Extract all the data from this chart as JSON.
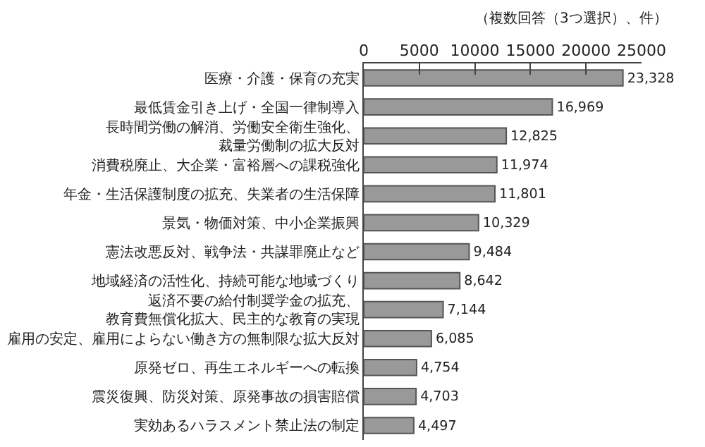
{
  "chart_data": {
    "type": "bar",
    "orientation": "horizontal",
    "categories": [
      "医療・介護・保育の充実",
      "最低賃金引き上げ・全国一律制導入",
      "長時間労働の解消、労働安全衛生強化、裁量労働制の拡大反対",
      "消費税廃止、大企業・富裕層への課税強化",
      "年金・生活保護制度の拡充、失業者の生活保障",
      "景気・物価対策、中小企業振興",
      "憲法改悪反対、戦争法・共謀罪廃止など",
      "地域経済の活性化、持続可能な地域づくり",
      "返済不要の給付制奨学金の拡充、教育費無償化拡大、民主的な教育の実現",
      "雇用の安定、雇用によらない働き方の無制限な拡大反対",
      "原発ゼロ、再生エネルギーへの転換",
      "震災復興、防災対策、原発事故の損害賠償",
      "実効あるハラスメント禁止法の制定"
    ],
    "values": [
      23328,
      16969,
      12825,
      11974,
      11801,
      10329,
      9484,
      8642,
      7144,
      6085,
      4754,
      4703,
      4497
    ],
    "value_labels": [
      "23,328",
      "16,969",
      "12,825",
      "11,974",
      "11,801",
      "10,329",
      "9,484",
      "8,642",
      "7,144",
      "6,085",
      "4,754",
      "4,703",
      "4,497"
    ],
    "color": "#999999",
    "xlim": [
      0,
      25000
    ],
    "xticks": [
      0,
      5000,
      10000,
      15000,
      20000,
      25000
    ],
    "legend": false,
    "annotations": [
      "（複数回答（3つ選択）、件）"
    ]
  }
}
